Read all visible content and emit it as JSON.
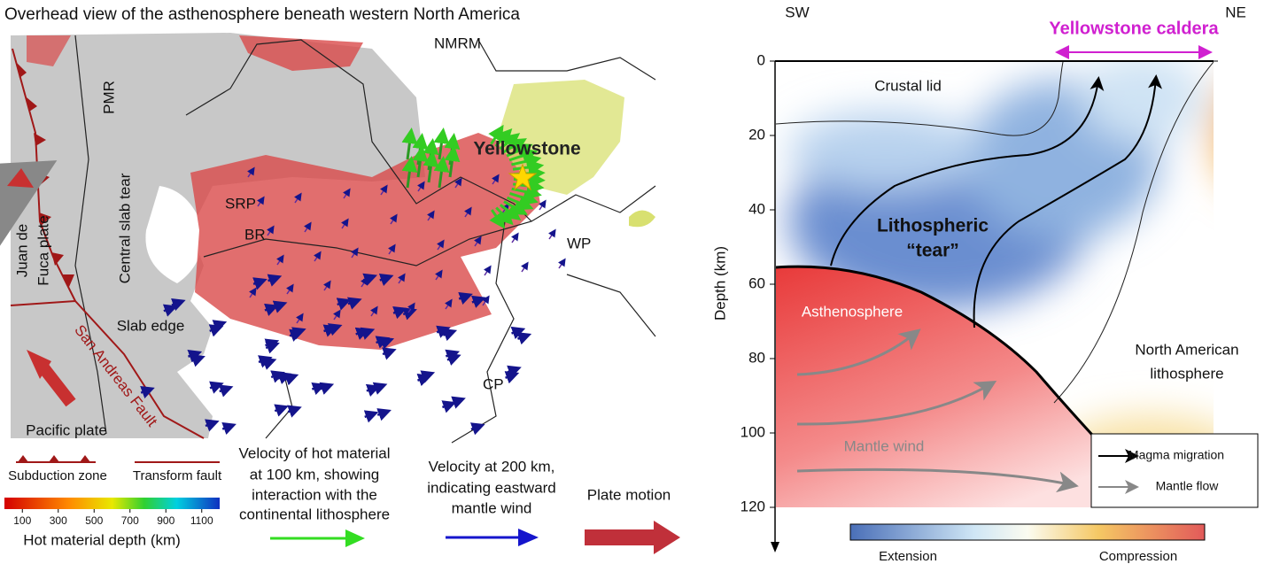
{
  "left_panel": {
    "title": "Overhead view of the asthenosphere beneath western North America",
    "map_labels": {
      "nmrm": "NMRM",
      "pmr": "PMR",
      "yellowstone": "Yellowstone",
      "srp": "SRP",
      "br": "BR",
      "central_slab_tear": "Central slab tear",
      "juan_de_fuca": [
        "Juan de",
        "Fuca plate"
      ],
      "slab_edge": "Slab edge",
      "san_andreas": "San Andreas Fault",
      "pacific_plate": "Pacific plate",
      "wp": "WP",
      "cp": "CP"
    },
    "legend": {
      "subduction_zone": "Subduction zone",
      "transform_fault": "Transform fault",
      "colorbar": {
        "lim": [
          0,
          1200
        ],
        "ticks": [
          100,
          300,
          500,
          700,
          900,
          1100
        ],
        "label": "Hot material depth (km)"
      },
      "hot_velocity": [
        "Velocity of hot material",
        "at 100 km, showing",
        "interaction with the",
        "continental lithosphere"
      ],
      "wind_velocity": [
        "Velocity at 200 km,",
        "indicating eastward",
        "mantle wind"
      ],
      "plate_motion": "Plate motion"
    }
  },
  "right_panel": {
    "sw": "SW",
    "ne": "NE",
    "caldera": "Yellowstone caldera",
    "depth_axis": {
      "label": "Depth (km)",
      "lim": [
        0,
        120
      ],
      "ticks": [
        0,
        20,
        40,
        60,
        80,
        100,
        120
      ]
    },
    "labels": {
      "crustal_lid": "Crustal lid",
      "tear": [
        "Lithospheric",
        "“tear”"
      ],
      "asthenosphere": "Asthenosphere",
      "mantle_wind": "Mantle wind",
      "north_american": [
        "North American",
        "lithosphere"
      ]
    },
    "legend": {
      "magma": "Magma migration",
      "mantle": "Mantle flow"
    },
    "colorbar": {
      "low": "Extension",
      "high": "Compression"
    }
  }
}
